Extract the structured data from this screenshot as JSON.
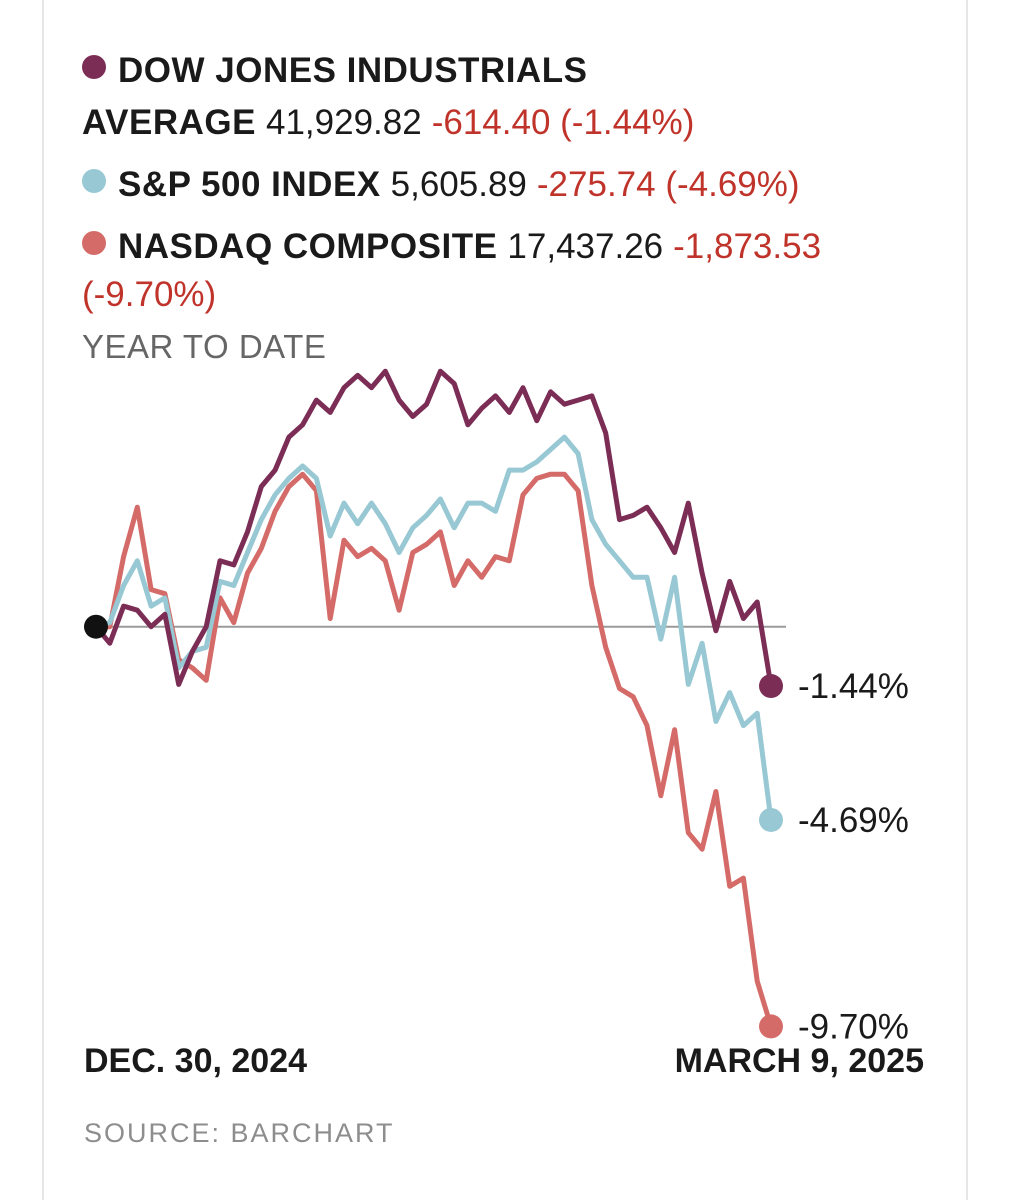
{
  "legend": [
    {
      "name": "DOW JONES INDUSTRIALS",
      "name2": "AVERAGE",
      "value": "41,929.82",
      "change": "-614.40 (-1.44%)",
      "color": "#7b2d55"
    },
    {
      "name": "S&P 500 INDEX",
      "value": "5,605.89",
      "change": "-275.74 (-4.69%)",
      "color": "#97c8d3"
    },
    {
      "name": "NASDAQ COMPOSITE",
      "value": "17,437.26",
      "change": "-1,873.53",
      "change2": "(-9.70%)",
      "color": "#d46b68"
    }
  ],
  "subhead": "YEAR TO DATE",
  "chart_data": {
    "type": "line",
    "x_start_label": "DEC. 30, 2024",
    "x_end_label": "MARCH 9, 2025",
    "ylim": [
      -11.0,
      7.2
    ],
    "baseline": 0,
    "series": [
      {
        "name": "DOW JONES INDUSTRIALS AVERAGE",
        "color": "#7b2d55",
        "end_label": "-1.44%",
        "values": [
          0,
          -0.4,
          0.5,
          0.4,
          0.0,
          0.3,
          -1.4,
          -0.6,
          0.0,
          1.6,
          1.5,
          2.3,
          3.4,
          3.8,
          4.6,
          4.9,
          5.5,
          5.2,
          5.8,
          6.1,
          5.8,
          6.2,
          5.5,
          5.1,
          5.4,
          6.2,
          5.9,
          4.9,
          5.3,
          5.6,
          5.2,
          5.8,
          5.0,
          5.7,
          5.4,
          5.5,
          5.6,
          4.7,
          2.6,
          2.7,
          2.9,
          2.4,
          1.8,
          3.0,
          1.3,
          -0.1,
          1.1,
          0.2,
          0.6,
          -1.44
        ]
      },
      {
        "name": "S&P 500 INDEX",
        "color": "#97c8d3",
        "end_label": "-4.69%",
        "values": [
          0,
          0.1,
          1.0,
          1.6,
          0.5,
          0.7,
          -1.0,
          -0.6,
          -0.5,
          1.1,
          1.0,
          1.8,
          2.6,
          3.2,
          3.6,
          3.9,
          3.6,
          2.2,
          3.0,
          2.5,
          3.0,
          2.5,
          1.8,
          2.4,
          2.7,
          3.1,
          2.4,
          3.0,
          3.0,
          2.8,
          3.8,
          3.8,
          4.0,
          4.3,
          4.6,
          4.2,
          2.6,
          2.0,
          1.6,
          1.2,
          1.2,
          -0.3,
          1.2,
          -1.4,
          -0.4,
          -2.3,
          -1.6,
          -2.4,
          -2.1,
          -4.69
        ]
      },
      {
        "name": "NASDAQ COMPOSITE",
        "color": "#d46b68",
        "end_label": "-9.70%",
        "values": [
          0,
          0.0,
          1.7,
          2.9,
          0.9,
          0.8,
          -0.8,
          -1.0,
          -1.3,
          0.7,
          0.1,
          1.3,
          1.9,
          2.8,
          3.4,
          3.7,
          3.3,
          0.2,
          2.1,
          1.7,
          1.9,
          1.6,
          0.4,
          1.8,
          2.0,
          2.3,
          1.0,
          1.6,
          1.2,
          1.7,
          1.6,
          3.2,
          3.6,
          3.7,
          3.7,
          3.3,
          1.0,
          -0.5,
          -1.5,
          -1.7,
          -2.4,
          -4.1,
          -2.5,
          -5.0,
          -5.4,
          -4.0,
          -6.3,
          -6.1,
          -8.6,
          -9.7
        ]
      }
    ]
  },
  "source": "SOURCE: BARCHART"
}
